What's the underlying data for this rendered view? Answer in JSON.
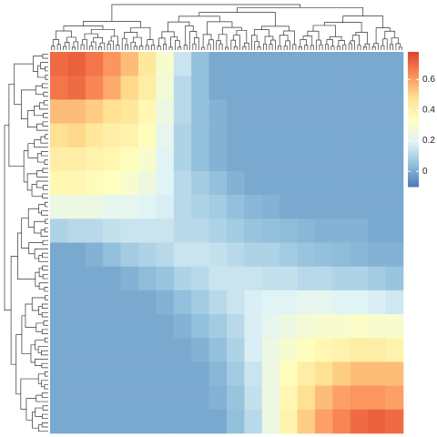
{
  "chart_data": {
    "type": "heatmap",
    "matrix": [
      [
        0.7,
        0.72,
        0.68,
        0.62,
        0.55,
        0.45,
        0.3,
        0.15,
        0.05,
        0,
        0,
        0,
        0,
        0,
        0,
        0,
        0,
        0,
        0,
        0
      ],
      [
        0.68,
        0.7,
        0.65,
        0.58,
        0.5,
        0.42,
        0.28,
        0.12,
        0.05,
        0,
        0,
        0,
        0,
        0,
        0,
        0,
        0,
        0,
        0,
        0
      ],
      [
        0.55,
        0.55,
        0.52,
        0.48,
        0.45,
        0.38,
        0.25,
        0.12,
        0.05,
        0.02,
        0,
        0,
        0,
        0,
        0,
        0,
        0,
        0,
        0,
        0
      ],
      [
        0.48,
        0.5,
        0.45,
        0.42,
        0.4,
        0.35,
        0.22,
        0.1,
        0.05,
        0.02,
        0,
        0,
        0,
        0,
        0,
        0,
        0,
        0,
        0,
        0
      ],
      [
        0.42,
        0.42,
        0.4,
        0.38,
        0.35,
        0.3,
        0.2,
        0.1,
        0.05,
        0.02,
        0,
        0,
        0,
        0,
        0,
        0,
        0,
        0,
        0,
        0
      ],
      [
        0.38,
        0.38,
        0.36,
        0.34,
        0.3,
        0.26,
        0.2,
        0.12,
        0.08,
        0.05,
        0.02,
        0,
        0,
        0,
        0,
        0,
        0,
        0,
        0,
        0
      ],
      [
        0.25,
        0.25,
        0.25,
        0.22,
        0.22,
        0.2,
        0.18,
        0.12,
        0.1,
        0.08,
        0.05,
        0.03,
        0.02,
        0,
        0,
        0,
        0,
        0,
        0,
        0
      ],
      [
        0.1,
        0.12,
        0.12,
        0.14,
        0.15,
        0.15,
        0.15,
        0.12,
        0.12,
        0.1,
        0.08,
        0.06,
        0.05,
        0.04,
        0.03,
        0.02,
        0.02,
        0.02,
        0,
        0
      ],
      [
        0,
        0,
        0.02,
        0.05,
        0.08,
        0.1,
        0.12,
        0.15,
        0.15,
        0.14,
        0.12,
        0.1,
        0.1,
        0.08,
        0.06,
        0.05,
        0.04,
        0.03,
        0.02,
        0.02
      ],
      [
        0,
        0,
        0,
        0,
        0.02,
        0.04,
        0.06,
        0.1,
        0.12,
        0.15,
        0.15,
        0.15,
        0.14,
        0.14,
        0.12,
        0.12,
        0.1,
        0.1,
        0.08,
        0.06
      ],
      [
        0,
        0,
        0,
        0,
        0,
        0,
        0.02,
        0.05,
        0.08,
        0.12,
        0.15,
        0.18,
        0.2,
        0.2,
        0.22,
        0.22,
        0.2,
        0.2,
        0.18,
        0.16
      ],
      [
        0,
        0,
        0,
        0,
        0,
        0,
        0,
        0.02,
        0.05,
        0.08,
        0.12,
        0.18,
        0.22,
        0.25,
        0.28,
        0.3,
        0.3,
        0.32,
        0.3,
        0.3
      ],
      [
        0,
        0,
        0,
        0,
        0,
        0,
        0,
        0,
        0.02,
        0.05,
        0.1,
        0.18,
        0.25,
        0.3,
        0.35,
        0.38,
        0.4,
        0.42,
        0.42,
        0.4
      ],
      [
        0,
        0,
        0,
        0,
        0,
        0,
        0,
        0,
        0,
        0.03,
        0.08,
        0.15,
        0.25,
        0.35,
        0.42,
        0.48,
        0.52,
        0.55,
        0.55,
        0.55
      ],
      [
        0,
        0,
        0,
        0,
        0,
        0,
        0,
        0,
        0,
        0.02,
        0.06,
        0.14,
        0.25,
        0.38,
        0.48,
        0.55,
        0.6,
        0.62,
        0.62,
        0.6
      ],
      [
        0,
        0,
        0,
        0,
        0,
        0,
        0,
        0,
        0,
        0,
        0.05,
        0.12,
        0.25,
        0.4,
        0.52,
        0.6,
        0.65,
        0.7,
        0.72,
        0.7
      ]
    ],
    "clim": [
      -0.1,
      0.78
    ],
    "cticks": [
      0,
      0.2,
      0.4,
      0.6
    ],
    "colorscale": [
      "#4a7ab8",
      "#91bfdb",
      "#e0f3f8",
      "#ffffbf",
      "#fee090",
      "#fc8d59",
      "#e0422b"
    ]
  }
}
